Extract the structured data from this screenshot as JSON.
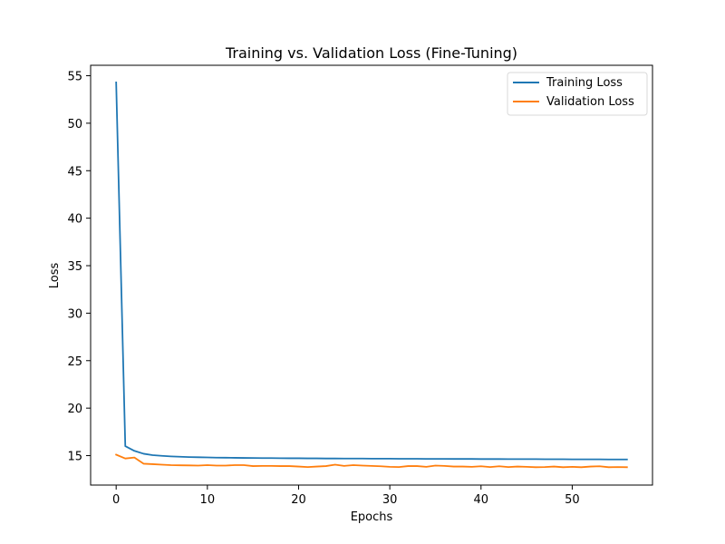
{
  "chart_data": {
    "type": "line",
    "title": "Training vs. Validation Loss (Fine-Tuning)",
    "xlabel": "Epochs",
    "ylabel": "Loss",
    "xlim": [
      -2.8,
      58.8
    ],
    "ylim": [
      11.9,
      56.1
    ],
    "xticks": [
      0,
      10,
      20,
      30,
      40,
      50
    ],
    "yticks": [
      15,
      20,
      25,
      30,
      35,
      40,
      45,
      50,
      55
    ],
    "grid": false,
    "legend": "top-right",
    "x": [
      0,
      1,
      2,
      3,
      4,
      5,
      6,
      7,
      8,
      9,
      10,
      11,
      12,
      13,
      14,
      15,
      16,
      17,
      18,
      19,
      20,
      21,
      22,
      23,
      24,
      25,
      26,
      27,
      28,
      29,
      30,
      31,
      32,
      33,
      34,
      35,
      36,
      37,
      38,
      39,
      40,
      41,
      42,
      43,
      44,
      45,
      46,
      47,
      48,
      49,
      50,
      51,
      52,
      53,
      54,
      55,
      56
    ],
    "series": [
      {
        "name": "Training Loss",
        "color": "#1f77b4",
        "values": [
          54.3,
          16.0,
          15.5,
          15.2,
          15.05,
          14.98,
          14.92,
          14.88,
          14.85,
          14.83,
          14.81,
          14.79,
          14.78,
          14.77,
          14.76,
          14.75,
          14.74,
          14.74,
          14.73,
          14.72,
          14.72,
          14.71,
          14.71,
          14.7,
          14.7,
          14.69,
          14.69,
          14.69,
          14.68,
          14.68,
          14.68,
          14.67,
          14.67,
          14.67,
          14.66,
          14.66,
          14.66,
          14.65,
          14.65,
          14.65,
          14.64,
          14.64,
          14.64,
          14.63,
          14.63,
          14.63,
          14.63,
          14.62,
          14.62,
          14.62,
          14.61,
          14.61,
          14.61,
          14.61,
          14.6,
          14.6,
          14.6
        ]
      },
      {
        "name": "Validation Loss",
        "color": "#ff7f0e",
        "values": [
          15.1,
          14.7,
          14.8,
          14.15,
          14.1,
          14.05,
          14.0,
          13.98,
          13.97,
          13.95,
          14.0,
          13.95,
          13.95,
          14.0,
          14.0,
          13.9,
          13.92,
          13.92,
          13.9,
          13.9,
          13.85,
          13.8,
          13.85,
          13.9,
          14.05,
          13.92,
          14.0,
          13.95,
          13.92,
          13.88,
          13.82,
          13.8,
          13.9,
          13.9,
          13.82,
          13.95,
          13.92,
          13.85,
          13.85,
          13.82,
          13.88,
          13.8,
          13.88,
          13.8,
          13.85,
          13.82,
          13.78,
          13.8,
          13.85,
          13.78,
          13.82,
          13.78,
          13.85,
          13.88,
          13.78,
          13.8,
          13.78
        ]
      }
    ]
  }
}
